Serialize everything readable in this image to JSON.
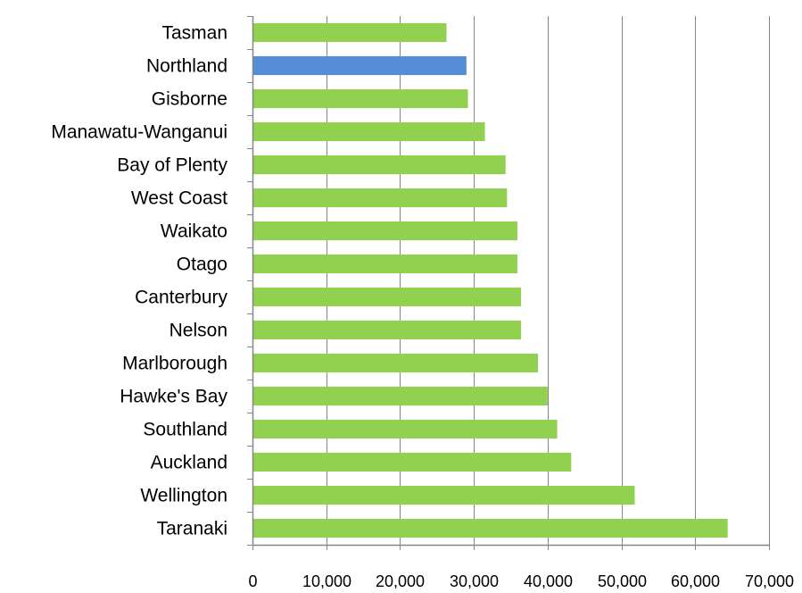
{
  "chart_data": {
    "type": "bar",
    "orientation": "horizontal",
    "title": "",
    "xlabel": "",
    "ylabel": "",
    "categories": [
      "Tasman",
      "Northland",
      "Gisborne",
      "Manawatu-Wanganui",
      "Bay of Plenty",
      "West Coast",
      "Waikato",
      "Otago",
      "Canterbury",
      "Nelson",
      "Marlborough",
      "Hawke's Bay",
      "Southland",
      "Auckland",
      "Wellington",
      "Taranaki"
    ],
    "values": [
      26300,
      29000,
      29200,
      31500,
      34300,
      34500,
      35900,
      35900,
      36400,
      36400,
      38700,
      40000,
      41300,
      43200,
      51800,
      64400
    ],
    "highlight_category": "Northland",
    "xlim": [
      0,
      70000
    ],
    "x_ticks": [
      0,
      10000,
      20000,
      30000,
      40000,
      50000,
      60000,
      70000
    ],
    "x_tick_labels": [
      "0",
      "10,000",
      "20,000",
      "30,000",
      "40,000",
      "50,000",
      "60,000",
      "70,000"
    ],
    "grid": "vertical",
    "legend": "none",
    "colors": {
      "bar": "#92d050",
      "highlight": "#558ed5",
      "grid": "#868686",
      "axis": "#868686"
    }
  }
}
